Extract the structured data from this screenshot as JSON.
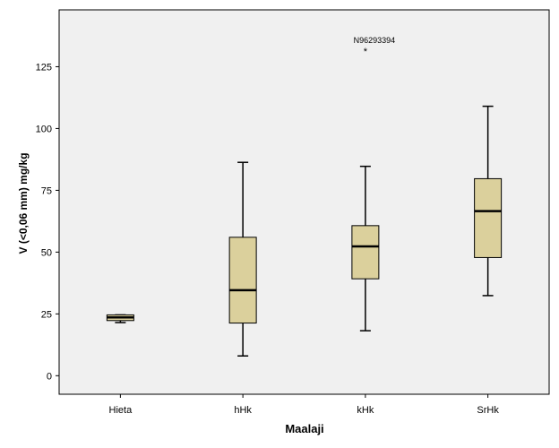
{
  "chart_data": {
    "type": "boxplot",
    "title": "",
    "xlabel": "Maalaji",
    "ylabel": "V (<0,06 mm) mg/kg",
    "ylim": [
      -7.5,
      148
    ],
    "yticks": [
      0,
      25,
      50,
      75,
      100,
      125
    ],
    "categories": [
      "Hieta",
      "hHk",
      "kHk",
      "SrHk"
    ],
    "boxes": [
      {
        "category": "Hieta",
        "min": 21.5,
        "q1": 22.3,
        "median": 23.6,
        "q3": 24.6,
        "max": 24.6
      },
      {
        "category": "hHk",
        "min": 8.0,
        "q1": 21.3,
        "median": 34.6,
        "q3": 56.0,
        "max": 86.3
      },
      {
        "category": "kHk",
        "min": 18.2,
        "q1": 39.2,
        "median": 52.3,
        "q3": 60.7,
        "max": 84.7
      },
      {
        "category": "SrHk",
        "min": 32.4,
        "q1": 47.8,
        "median": 66.6,
        "q3": 79.7,
        "max": 109.0
      }
    ],
    "outliers": [
      {
        "category": "kHk",
        "value": 131.7,
        "marker": "*",
        "label": "N96293394"
      }
    ],
    "grid": false,
    "legend": "none",
    "colors": {
      "plot_background": "#f0f0f0",
      "box_fill": "#dbd09c",
      "line": "#000000"
    }
  }
}
